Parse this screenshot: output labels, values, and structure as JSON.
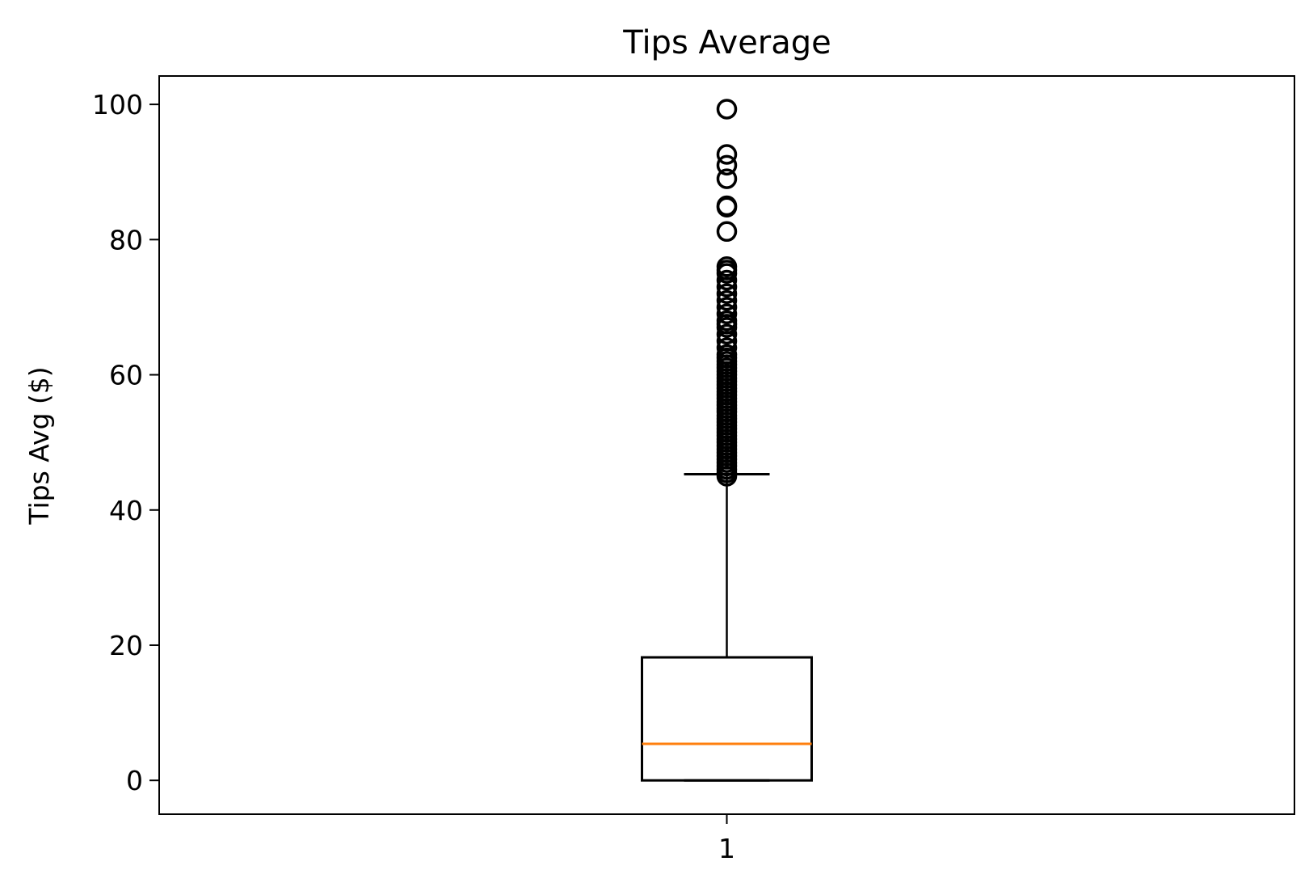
{
  "chart_data": {
    "type": "box",
    "title": "Tips Average",
    "xlabel": "",
    "ylabel": "Tips Avg ($)",
    "ylim": [
      -5,
      104.2
    ],
    "y_ticks": [
      0,
      20,
      40,
      60,
      80,
      100
    ],
    "y_tick_labels": [
      "0",
      "20",
      "40",
      "60",
      "80",
      "100"
    ],
    "categories": [
      "1"
    ],
    "grid": false,
    "legend": "none",
    "boxes": [
      {
        "category": "1",
        "whisker_low": 0,
        "q1": 0,
        "median": 5.4,
        "q3": 18.2,
        "whisker_high": 45.3,
        "outliers": [
          45.0,
          45.5,
          46.0,
          46.5,
          47.0,
          47.5,
          48.0,
          48.5,
          49.0,
          49.5,
          50.0,
          50.5,
          51.0,
          51.5,
          52.0,
          52.5,
          53.0,
          53.5,
          54.0,
          54.5,
          55.0,
          55.5,
          56.0,
          56.5,
          57.0,
          57.5,
          58.0,
          58.5,
          59.0,
          59.5,
          60.0,
          60.5,
          61.0,
          61.5,
          62.0,
          62.5,
          63.0,
          64.0,
          65.0,
          66.0,
          67.0,
          67.5,
          68.0,
          69.0,
          70.0,
          71.0,
          72.0,
          73.0,
          74.0,
          75.0,
          75.5,
          76.0,
          81.2,
          84.8,
          85.0,
          89.0,
          91.0,
          92.6,
          99.3
        ]
      }
    ],
    "colors": {
      "box": "#000000",
      "median": "#ff7f0e",
      "outlier": "#000000"
    }
  }
}
